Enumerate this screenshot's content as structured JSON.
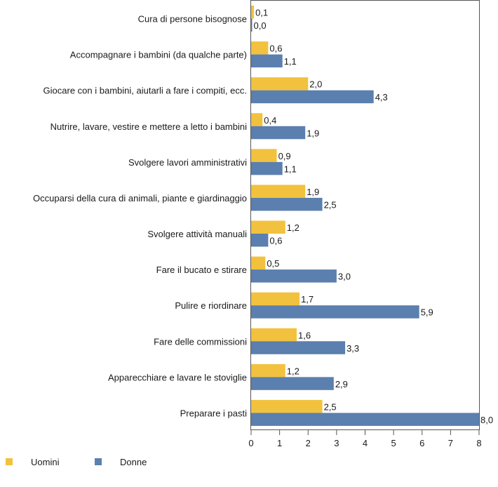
{
  "chart_data": {
    "type": "bar",
    "orientation": "horizontal",
    "categories": [
      "Cura di persone bisognose",
      "Accompagnare i bambini (da qualche parte)",
      "Giocare con i bambini, aiutarli a fare i compiti, ecc.",
      "Nutrire, lavare, vestire e mettere a letto i bambini",
      "Svolgere lavori amministrativi",
      "Occuparsi della cura di animali, piante e giardinaggio",
      "Svolgere attività manuali",
      "Fare il bucato e stirare",
      "Pulire e riordinare",
      "Fare delle commissioni",
      "Apparecchiare e lavare le stoviglie",
      "Preparare i pasti"
    ],
    "series": [
      {
        "name": "Uomini",
        "color": "#f2c23e",
        "values": [
          0.1,
          0.6,
          2.0,
          0.4,
          0.9,
          1.9,
          1.2,
          0.5,
          1.7,
          1.6,
          1.2,
          2.5
        ],
        "labels": [
          "0,1",
          "0,6",
          "2,0",
          "0,4",
          "0,9",
          "1,9",
          "1,2",
          "0,5",
          "1,7",
          "1,6",
          "1,2",
          "2,5"
        ]
      },
      {
        "name": "Donne",
        "color": "#5b7fae",
        "values": [
          0.0,
          1.1,
          4.3,
          1.9,
          1.1,
          2.5,
          0.6,
          3.0,
          5.9,
          3.3,
          2.9,
          8.0
        ],
        "labels": [
          "0,0",
          "1,1",
          "4,3",
          "1,9",
          "1,1",
          "2,5",
          "0,6",
          "3,0",
          "5,9",
          "3,3",
          "2,9",
          "8,0"
        ]
      }
    ],
    "xlim": [
      0,
      8
    ],
    "x_ticks": [
      "0",
      "1",
      "2",
      "3",
      "4",
      "5",
      "6",
      "7",
      "8"
    ],
    "legend_position": "bottom-left",
    "grid": false
  }
}
